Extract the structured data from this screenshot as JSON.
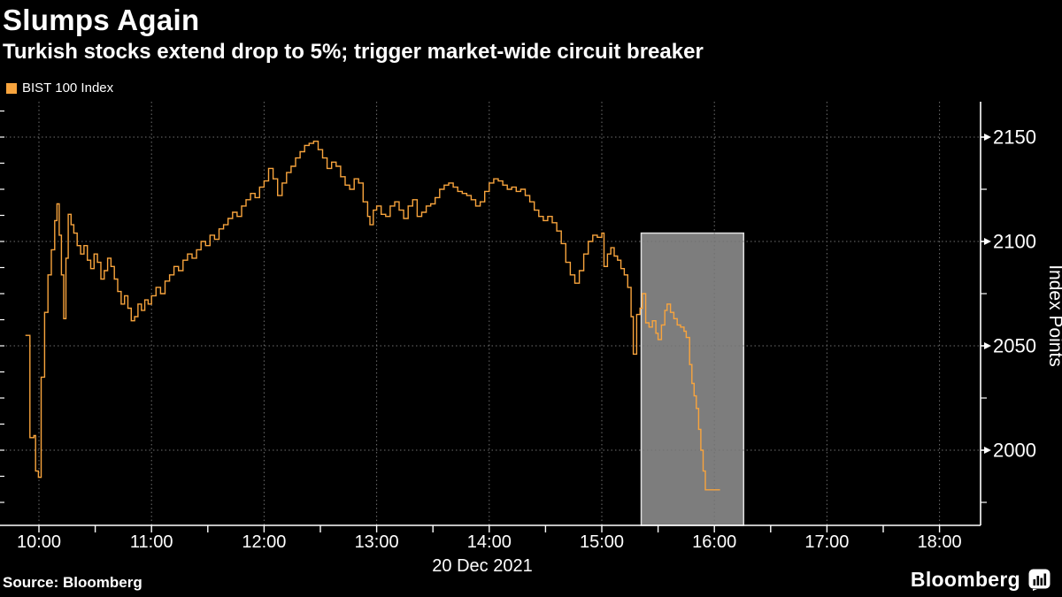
{
  "title": "Slumps Again",
  "subtitle": "Turkish stocks extend drop to 5%; trigger market-wide circuit breaker",
  "legend": {
    "label": "BIST 100 Index",
    "swatch_color": "#f8a43d"
  },
  "source": "Source: Bloomberg",
  "brand": "Bloomberg",
  "colors": {
    "background": "#000000",
    "text": "#ffffff",
    "line": "#f8a43d",
    "grid": "#6f6f6f",
    "axis": "#ffffff",
    "highlight_fill": "#7d7d7d",
    "highlight_border": "#e0e0e0"
  },
  "chart_data": {
    "type": "line",
    "title": "Slumps Again",
    "xlabel": "20 Dec 2021",
    "ylabel": "Index Points",
    "grid": "dotted",
    "legend_position": "top-left",
    "x_unit": "hour of day",
    "x_ticks": [
      {
        "hour": 10,
        "label": "10:00"
      },
      {
        "hour": 11,
        "label": "11:00"
      },
      {
        "hour": 12,
        "label": "12:00"
      },
      {
        "hour": 13,
        "label": "13:00"
      },
      {
        "hour": 14,
        "label": "14:00"
      },
      {
        "hour": 15,
        "label": "15:00"
      },
      {
        "hour": 16,
        "label": "16:00"
      },
      {
        "hour": 17,
        "label": "17:00"
      },
      {
        "hour": 18,
        "label": "18:00"
      }
    ],
    "x_minor_tick_every_hours": 0.5,
    "x_range_hours": [
      9.67,
      18.37
    ],
    "y_ticks": [
      2150,
      2100,
      2050,
      2000
    ],
    "y_minor_tick_every": 25,
    "y_edge_tick_every": 12.5,
    "y_range": [
      1964,
      2167
    ],
    "highlight_region": {
      "t_start": 15.35,
      "t_end": 16.26,
      "v_top": 2104
    },
    "series": [
      {
        "name": "BIST 100 Index",
        "style": "step",
        "points": [
          [
            9.88,
            2055
          ],
          [
            9.92,
            2006
          ],
          [
            9.955,
            2007
          ],
          [
            9.97,
            1990
          ],
          [
            9.995,
            1987
          ],
          [
            10.02,
            2035
          ],
          [
            10.05,
            2066
          ],
          [
            10.08,
            2084
          ],
          [
            10.11,
            2096
          ],
          [
            10.14,
            2110
          ],
          [
            10.16,
            2118
          ],
          [
            10.18,
            2103
          ],
          [
            10.2,
            2084
          ],
          [
            10.22,
            2063
          ],
          [
            10.24,
            2092
          ],
          [
            10.26,
            2113
          ],
          [
            10.285,
            2108
          ],
          [
            10.31,
            2104
          ],
          [
            10.34,
            2098
          ],
          [
            10.37,
            2094
          ],
          [
            10.4,
            2098
          ],
          [
            10.43,
            2091
          ],
          [
            10.46,
            2087
          ],
          [
            10.49,
            2094
          ],
          [
            10.52,
            2090
          ],
          [
            10.55,
            2082
          ],
          [
            10.58,
            2086
          ],
          [
            10.61,
            2092
          ],
          [
            10.64,
            2088
          ],
          [
            10.67,
            2082
          ],
          [
            10.7,
            2076
          ],
          [
            10.73,
            2070
          ],
          [
            10.76,
            2074
          ],
          [
            10.79,
            2068
          ],
          [
            10.82,
            2062
          ],
          [
            10.85,
            2064
          ],
          [
            10.88,
            2070
          ],
          [
            10.91,
            2067
          ],
          [
            10.94,
            2072
          ],
          [
            10.97,
            2070
          ],
          [
            11.0,
            2074
          ],
          [
            11.04,
            2078
          ],
          [
            11.08,
            2075
          ],
          [
            11.12,
            2081
          ],
          [
            11.16,
            2084
          ],
          [
            11.2,
            2088
          ],
          [
            11.24,
            2086
          ],
          [
            11.28,
            2091
          ],
          [
            11.32,
            2094
          ],
          [
            11.36,
            2092
          ],
          [
            11.4,
            2096
          ],
          [
            11.44,
            2100
          ],
          [
            11.48,
            2098
          ],
          [
            11.52,
            2103
          ],
          [
            11.56,
            2101
          ],
          [
            11.6,
            2106
          ],
          [
            11.64,
            2108
          ],
          [
            11.68,
            2111
          ],
          [
            11.72,
            2114
          ],
          [
            11.76,
            2112
          ],
          [
            11.8,
            2117
          ],
          [
            11.84,
            2120
          ],
          [
            11.88,
            2123
          ],
          [
            11.92,
            2121
          ],
          [
            11.96,
            2126
          ],
          [
            12.0,
            2129
          ],
          [
            12.04,
            2135
          ],
          [
            12.08,
            2130
          ],
          [
            12.12,
            2122
          ],
          [
            12.16,
            2128
          ],
          [
            12.2,
            2133
          ],
          [
            12.24,
            2136
          ],
          [
            12.28,
            2140
          ],
          [
            12.32,
            2143
          ],
          [
            12.36,
            2146
          ],
          [
            12.4,
            2147
          ],
          [
            12.44,
            2148
          ],
          [
            12.48,
            2144
          ],
          [
            12.52,
            2140
          ],
          [
            12.56,
            2135
          ],
          [
            12.6,
            2138
          ],
          [
            12.64,
            2136
          ],
          [
            12.68,
            2131
          ],
          [
            12.72,
            2127
          ],
          [
            12.76,
            2125
          ],
          [
            12.8,
            2130
          ],
          [
            12.84,
            2128
          ],
          [
            12.88,
            2119
          ],
          [
            12.92,
            2112
          ],
          [
            12.94,
            2108
          ],
          [
            12.97,
            2115
          ],
          [
            13.0,
            2117
          ],
          [
            13.04,
            2113
          ],
          [
            13.08,
            2112
          ],
          [
            13.12,
            2117
          ],
          [
            13.16,
            2119
          ],
          [
            13.2,
            2115
          ],
          [
            13.24,
            2111
          ],
          [
            13.28,
            2117
          ],
          [
            13.32,
            2120
          ],
          [
            13.36,
            2112
          ],
          [
            13.4,
            2114
          ],
          [
            13.44,
            2117
          ],
          [
            13.48,
            2118
          ],
          [
            13.52,
            2121
          ],
          [
            13.56,
            2125
          ],
          [
            13.6,
            2127
          ],
          [
            13.64,
            2128
          ],
          [
            13.68,
            2126
          ],
          [
            13.72,
            2124
          ],
          [
            13.76,
            2123
          ],
          [
            13.8,
            2122
          ],
          [
            13.84,
            2120
          ],
          [
            13.88,
            2117
          ],
          [
            13.92,
            2119
          ],
          [
            13.96,
            2124
          ],
          [
            14.0,
            2128
          ],
          [
            14.04,
            2130
          ],
          [
            14.08,
            2129
          ],
          [
            14.12,
            2127
          ],
          [
            14.16,
            2125
          ],
          [
            14.2,
            2126
          ],
          [
            14.24,
            2124
          ],
          [
            14.28,
            2125
          ],
          [
            14.32,
            2122
          ],
          [
            14.36,
            2119
          ],
          [
            14.4,
            2115
          ],
          [
            14.44,
            2112
          ],
          [
            14.48,
            2110
          ],
          [
            14.52,
            2112
          ],
          [
            14.56,
            2109
          ],
          [
            14.6,
            2105
          ],
          [
            14.64,
            2099
          ],
          [
            14.68,
            2090
          ],
          [
            14.72,
            2084
          ],
          [
            14.76,
            2080
          ],
          [
            14.8,
            2086
          ],
          [
            14.84,
            2094
          ],
          [
            14.88,
            2100
          ],
          [
            14.92,
            2103
          ],
          [
            14.96,
            2102
          ],
          [
            15.0,
            2104
          ],
          [
            15.02,
            2088
          ],
          [
            15.05,
            2094
          ],
          [
            15.08,
            2097
          ],
          [
            15.11,
            2093
          ],
          [
            15.14,
            2091
          ],
          [
            15.17,
            2087
          ],
          [
            15.2,
            2084
          ],
          [
            15.23,
            2078
          ],
          [
            15.26,
            2064
          ],
          [
            15.28,
            2046
          ],
          [
            15.31,
            2065
          ],
          [
            15.34,
            2068
          ],
          [
            15.36,
            2075
          ],
          [
            15.39,
            2061
          ],
          [
            15.42,
            2059
          ],
          [
            15.45,
            2062
          ],
          [
            15.48,
            2056
          ],
          [
            15.5,
            2053
          ],
          [
            15.53,
            2060
          ],
          [
            15.56,
            2067
          ],
          [
            15.58,
            2070
          ],
          [
            15.61,
            2066
          ],
          [
            15.64,
            2063
          ],
          [
            15.67,
            2060
          ],
          [
            15.7,
            2059
          ],
          [
            15.73,
            2057
          ],
          [
            15.75,
            2054
          ],
          [
            15.78,
            2041
          ],
          [
            15.8,
            2032
          ],
          [
            15.82,
            2026
          ],
          [
            15.84,
            2020
          ],
          [
            15.86,
            2010
          ],
          [
            15.88,
            2000
          ],
          [
            15.9,
            1990
          ],
          [
            15.92,
            1981
          ],
          [
            16.05,
            1981
          ]
        ]
      }
    ]
  }
}
